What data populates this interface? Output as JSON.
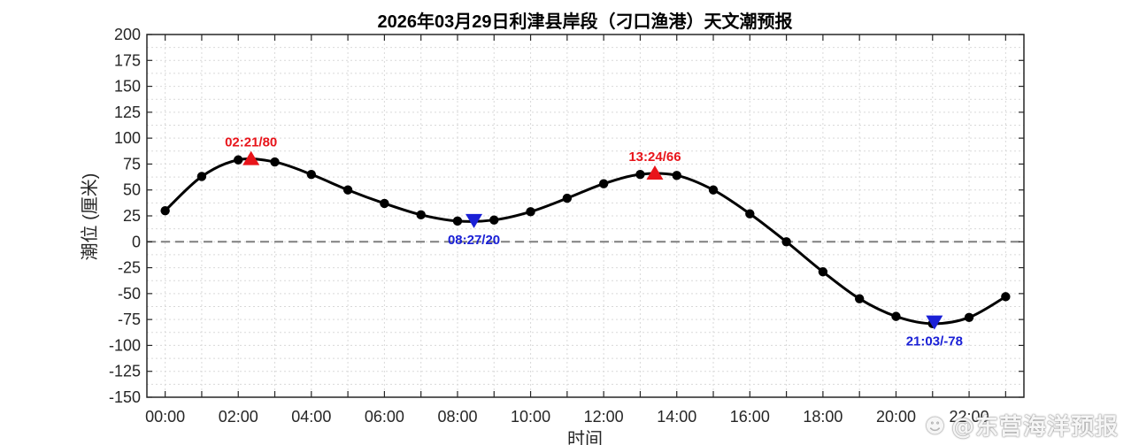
{
  "chart_data": {
    "type": "line",
    "title": "2026年03月29日利津县岸段（刁口渔港）天文潮预报",
    "xlabel": "时间",
    "ylabel": "潮位 (厘米)",
    "x_ticks": [
      "00:00",
      "02:00",
      "04:00",
      "06:00",
      "08:00",
      "10:00",
      "12:00",
      "14:00",
      "16:00",
      "18:00",
      "20:00",
      "22:00"
    ],
    "xlim": [
      -0.5,
      23.5
    ],
    "ylim": [
      -150,
      200
    ],
    "y_ticks": [
      200,
      175,
      150,
      125,
      100,
      75,
      50,
      25,
      0,
      -25,
      -50,
      -75,
      -100,
      -125,
      -150
    ],
    "grid": true,
    "zero_line": true,
    "series": [
      {
        "x": [
          0,
          1,
          2,
          3,
          4,
          5,
          6,
          7,
          8,
          9,
          10,
          11,
          12,
          13,
          14,
          15,
          16,
          17,
          18,
          19,
          20,
          21,
          22,
          23
        ],
        "values": [
          30,
          63,
          79,
          77,
          65,
          50,
          37,
          26,
          20,
          21,
          29,
          42,
          56,
          65,
          64,
          50,
          27,
          0,
          -29,
          -55,
          -72,
          -79,
          -73,
          -53
        ]
      }
    ],
    "extrema": [
      {
        "kind": "high",
        "time": "02:21",
        "value": 80,
        "label": "02:21/80",
        "x": 2.35
      },
      {
        "kind": "low",
        "time": "08:27",
        "value": 20,
        "label": "08:27/20",
        "x": 8.45
      },
      {
        "kind": "high",
        "time": "13:24",
        "value": 66,
        "label": "13:24/66",
        "x": 13.4
      },
      {
        "kind": "low",
        "time": "21:03",
        "value": -78,
        "label": "21:03/-78",
        "x": 21.05
      }
    ],
    "colors": {
      "curve": "#000000",
      "high": "#e8141a",
      "low": "#1a20d6",
      "zero": "#7f7f7f",
      "grid": "#d9d9d9"
    }
  },
  "watermark": {
    "icon": "weibo-icon",
    "text": "@东营海洋预报"
  }
}
